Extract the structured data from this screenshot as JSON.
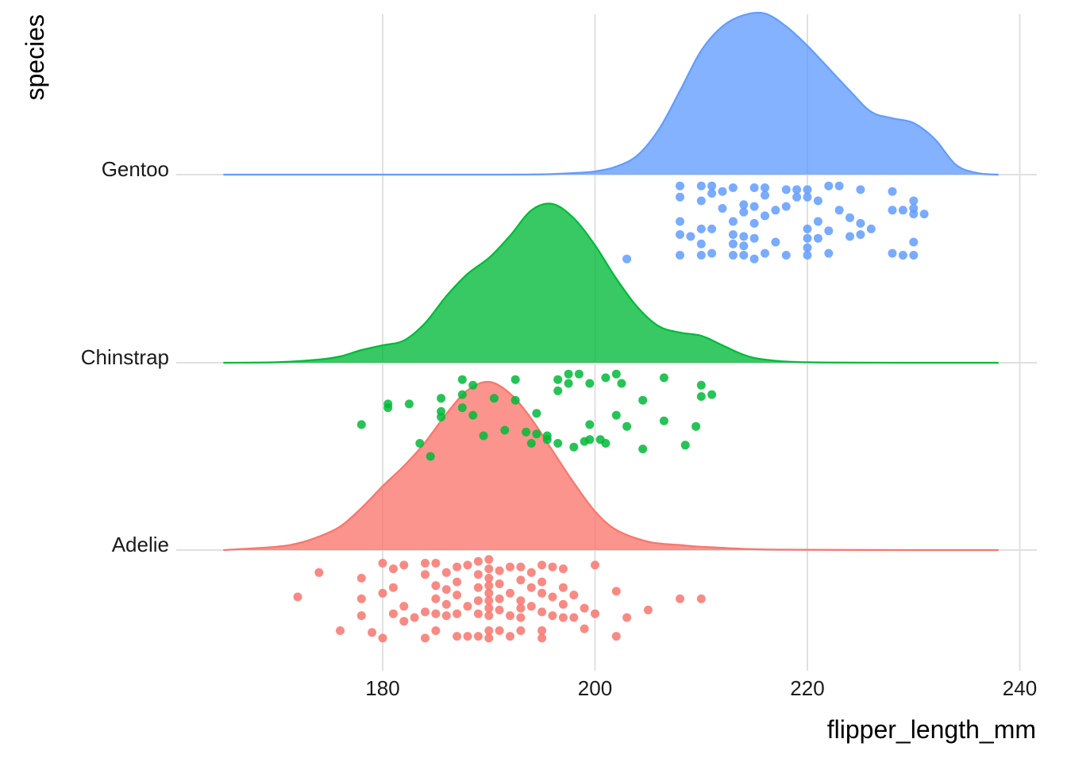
{
  "chart_data": {
    "type": "ridgeline",
    "title": "",
    "xlabel": "flipper_length_mm",
    "ylabel": "species",
    "xlim": [
      165,
      238
    ],
    "xticks": [
      180,
      200,
      220,
      240
    ],
    "grid": true,
    "legend": "none",
    "categories": [
      "Adelie",
      "Chinstrap",
      "Gentoo"
    ],
    "series": [
      {
        "name": "Adelie",
        "color": "#F8766D",
        "density_x": [
          165,
          170,
          172,
          174,
          176,
          178,
          180,
          182,
          184,
          186,
          188,
          190,
          192,
          194,
          196,
          198,
          200,
          202,
          205,
          208,
          210,
          215,
          220,
          230,
          238
        ],
        "density_rel": [
          0,
          0.02,
          0.04,
          0.08,
          0.14,
          0.25,
          0.38,
          0.5,
          0.64,
          0.81,
          0.95,
          1.0,
          0.93,
          0.78,
          0.59,
          0.4,
          0.23,
          0.12,
          0.05,
          0.03,
          0.02,
          0.005,
          0.002,
          0,
          0
        ],
        "points": [
          {
            "x": 172,
            "y": -0.25
          },
          {
            "x": 174,
            "y": -0.12
          },
          {
            "x": 176,
            "y": -0.43
          },
          {
            "x": 178,
            "y": -0.15
          },
          {
            "x": 178,
            "y": -0.26
          },
          {
            "x": 178,
            "y": -0.35
          },
          {
            "x": 179,
            "y": -0.44
          },
          {
            "x": 180,
            "y": -0.07
          },
          {
            "x": 180,
            "y": -0.23
          },
          {
            "x": 180,
            "y": -0.47
          },
          {
            "x": 181,
            "y": -0.1
          },
          {
            "x": 181,
            "y": -0.2
          },
          {
            "x": 181,
            "y": -0.34
          },
          {
            "x": 182,
            "y": -0.08
          },
          {
            "x": 182,
            "y": -0.3
          },
          {
            "x": 182,
            "y": -0.38
          },
          {
            "x": 183,
            "y": -0.36
          },
          {
            "x": 184,
            "y": -0.07
          },
          {
            "x": 184,
            "y": -0.13
          },
          {
            "x": 184,
            "y": -0.33
          },
          {
            "x": 184,
            "y": -0.47
          },
          {
            "x": 185,
            "y": -0.07
          },
          {
            "x": 185,
            "y": -0.19
          },
          {
            "x": 185,
            "y": -0.26
          },
          {
            "x": 185,
            "y": -0.34
          },
          {
            "x": 185,
            "y": -0.43
          },
          {
            "x": 186,
            "y": -0.12
          },
          {
            "x": 186,
            "y": -0.21
          },
          {
            "x": 186,
            "y": -0.29
          },
          {
            "x": 186,
            "y": -0.35
          },
          {
            "x": 187,
            "y": -0.09
          },
          {
            "x": 187,
            "y": -0.17
          },
          {
            "x": 187,
            "y": -0.24
          },
          {
            "x": 187,
            "y": -0.34
          },
          {
            "x": 187,
            "y": -0.46
          },
          {
            "x": 188,
            "y": -0.08
          },
          {
            "x": 188,
            "y": -0.3
          },
          {
            "x": 188,
            "y": -0.46
          },
          {
            "x": 189,
            "y": -0.06
          },
          {
            "x": 189,
            "y": -0.13
          },
          {
            "x": 189,
            "y": -0.2
          },
          {
            "x": 189,
            "y": -0.27
          },
          {
            "x": 189,
            "y": -0.34
          },
          {
            "x": 189,
            "y": -0.46
          },
          {
            "x": 190,
            "y": -0.05
          },
          {
            "x": 190,
            "y": -0.1
          },
          {
            "x": 190,
            "y": -0.15
          },
          {
            "x": 190,
            "y": -0.19
          },
          {
            "x": 190,
            "y": -0.23
          },
          {
            "x": 190,
            "y": -0.27
          },
          {
            "x": 190,
            "y": -0.31
          },
          {
            "x": 190,
            "y": -0.35
          },
          {
            "x": 190,
            "y": -0.43
          },
          {
            "x": 190,
            "y": -0.47
          },
          {
            "x": 191,
            "y": -0.11
          },
          {
            "x": 191,
            "y": -0.18
          },
          {
            "x": 191,
            "y": -0.26
          },
          {
            "x": 191,
            "y": -0.32
          },
          {
            "x": 191,
            "y": -0.43
          },
          {
            "x": 192,
            "y": -0.09
          },
          {
            "x": 192,
            "y": -0.23
          },
          {
            "x": 192,
            "y": -0.35
          },
          {
            "x": 192,
            "y": -0.46
          },
          {
            "x": 193,
            "y": -0.09
          },
          {
            "x": 193,
            "y": -0.16
          },
          {
            "x": 193,
            "y": -0.27
          },
          {
            "x": 193,
            "y": -0.31
          },
          {
            "x": 193,
            "y": -0.36
          },
          {
            "x": 193,
            "y": -0.43
          },
          {
            "x": 194,
            "y": -0.12
          },
          {
            "x": 194,
            "y": -0.2
          },
          {
            "x": 194,
            "y": -0.3
          },
          {
            "x": 195,
            "y": -0.08
          },
          {
            "x": 195,
            "y": -0.17
          },
          {
            "x": 195,
            "y": -0.23
          },
          {
            "x": 195,
            "y": -0.33
          },
          {
            "x": 195,
            "y": -0.43
          },
          {
            "x": 195,
            "y": -0.47
          },
          {
            "x": 196,
            "y": -0.09
          },
          {
            "x": 196,
            "y": -0.25
          },
          {
            "x": 196,
            "y": -0.35
          },
          {
            "x": 197,
            "y": -0.1
          },
          {
            "x": 197,
            "y": -0.2
          },
          {
            "x": 197,
            "y": -0.29
          },
          {
            "x": 197,
            "y": -0.36
          },
          {
            "x": 198,
            "y": -0.24
          },
          {
            "x": 198,
            "y": -0.36
          },
          {
            "x": 199,
            "y": -0.31
          },
          {
            "x": 199,
            "y": -0.42
          },
          {
            "x": 200,
            "y": -0.08
          },
          {
            "x": 200,
            "y": -0.34
          },
          {
            "x": 202,
            "y": -0.22
          },
          {
            "x": 202,
            "y": -0.46
          },
          {
            "x": 203,
            "y": -0.36
          },
          {
            "x": 205,
            "y": -0.32
          },
          {
            "x": 208,
            "y": -0.26
          },
          {
            "x": 210,
            "y": -0.26
          }
        ]
      },
      {
        "name": "Chinstrap",
        "color": "#00BA38",
        "density_x": [
          165,
          170,
          174,
          176,
          178,
          180,
          182,
          184,
          186,
          188,
          190,
          192,
          194,
          196,
          198,
          200,
          202,
          204,
          206,
          208,
          210,
          212,
          214,
          216,
          220,
          230,
          238
        ],
        "density_rel": [
          0,
          0.003,
          0.02,
          0.04,
          0.08,
          0.11,
          0.14,
          0.25,
          0.42,
          0.56,
          0.66,
          0.8,
          0.96,
          1.0,
          0.91,
          0.74,
          0.53,
          0.35,
          0.23,
          0.19,
          0.17,
          0.11,
          0.05,
          0.02,
          0.003,
          0,
          0
        ],
        "points": [
          {
            "x": 178,
            "y": -0.33
          },
          {
            "x": 180.5,
            "y": -0.22
          },
          {
            "x": 180.5,
            "y": -0.24
          },
          {
            "x": 182.5,
            "y": -0.22
          },
          {
            "x": 183.5,
            "y": -0.43
          },
          {
            "x": 184.5,
            "y": -0.5
          },
          {
            "x": 185.5,
            "y": -0.19
          },
          {
            "x": 185.5,
            "y": -0.26
          },
          {
            "x": 185.5,
            "y": -0.29
          },
          {
            "x": 187.5,
            "y": -0.09
          },
          {
            "x": 187.5,
            "y": -0.17
          },
          {
            "x": 187.5,
            "y": -0.24
          },
          {
            "x": 188.5,
            "y": -0.12
          },
          {
            "x": 188.5,
            "y": -0.28
          },
          {
            "x": 189.5,
            "y": -0.39
          },
          {
            "x": 190.5,
            "y": -0.19
          },
          {
            "x": 191.5,
            "y": -0.36
          },
          {
            "x": 192.5,
            "y": -0.09
          },
          {
            "x": 192.5,
            "y": -0.2
          },
          {
            "x": 193.5,
            "y": -0.37
          },
          {
            "x": 194,
            "y": -0.43
          },
          {
            "x": 194.5,
            "y": -0.27
          },
          {
            "x": 194.5,
            "y": -0.38
          },
          {
            "x": 195.5,
            "y": -0.39
          },
          {
            "x": 195.5,
            "y": -0.41
          },
          {
            "x": 196.5,
            "y": -0.09
          },
          {
            "x": 196.5,
            "y": -0.15
          },
          {
            "x": 196.5,
            "y": -0.43
          },
          {
            "x": 197.5,
            "y": -0.06
          },
          {
            "x": 197.5,
            "y": -0.11
          },
          {
            "x": 198,
            "y": -0.45
          },
          {
            "x": 198.5,
            "y": -0.06
          },
          {
            "x": 199,
            "y": -0.42
          },
          {
            "x": 199.5,
            "y": -0.11
          },
          {
            "x": 199.5,
            "y": -0.33
          },
          {
            "x": 199.5,
            "y": -0.41
          },
          {
            "x": 200.5,
            "y": -0.41
          },
          {
            "x": 201,
            "y": -0.08
          },
          {
            "x": 201,
            "y": -0.43
          },
          {
            "x": 202,
            "y": -0.06
          },
          {
            "x": 202,
            "y": -0.28
          },
          {
            "x": 202.5,
            "y": -0.11
          },
          {
            "x": 203,
            "y": -0.34
          },
          {
            "x": 204.5,
            "y": -0.2
          },
          {
            "x": 204.5,
            "y": -0.46
          },
          {
            "x": 206.5,
            "y": -0.08
          },
          {
            "x": 206.5,
            "y": -0.31
          },
          {
            "x": 208.5,
            "y": -0.44
          },
          {
            "x": 209.5,
            "y": -0.34
          },
          {
            "x": 210,
            "y": -0.12
          },
          {
            "x": 210,
            "y": -0.18
          },
          {
            "x": 211,
            "y": -0.17
          }
        ]
      },
      {
        "name": "Gentoo",
        "color": "#619CFF",
        "density_x": [
          165,
          190,
          195,
          198,
          200,
          202,
          204,
          206,
          208,
          210,
          212,
          214,
          216,
          218,
          220,
          222,
          224,
          226,
          228,
          230,
          232,
          234,
          236,
          238
        ],
        "density_rel": [
          0,
          0,
          0.002,
          0.01,
          0.02,
          0.05,
          0.12,
          0.28,
          0.52,
          0.77,
          0.92,
          0.99,
          1.0,
          0.92,
          0.8,
          0.66,
          0.52,
          0.39,
          0.35,
          0.32,
          0.22,
          0.06,
          0.01,
          0
        ],
        "points": [
          {
            "x": 203,
            "y": -0.45
          },
          {
            "x": 208,
            "y": -0.06
          },
          {
            "x": 208,
            "y": -0.12
          },
          {
            "x": 208,
            "y": -0.25
          },
          {
            "x": 208,
            "y": -0.32
          },
          {
            "x": 208,
            "y": -0.43
          },
          {
            "x": 209,
            "y": -0.33
          },
          {
            "x": 210,
            "y": -0.06
          },
          {
            "x": 210,
            "y": -0.14
          },
          {
            "x": 210,
            "y": -0.29
          },
          {
            "x": 210,
            "y": -0.37
          },
          {
            "x": 210,
            "y": -0.43
          },
          {
            "x": 211,
            "y": -0.06
          },
          {
            "x": 211,
            "y": -0.1
          },
          {
            "x": 211,
            "y": -0.29
          },
          {
            "x": 211,
            "y": -0.42
          },
          {
            "x": 212,
            "y": -0.09
          },
          {
            "x": 212,
            "y": -0.18
          },
          {
            "x": 213,
            "y": -0.07
          },
          {
            "x": 213,
            "y": -0.25
          },
          {
            "x": 213,
            "y": -0.32
          },
          {
            "x": 213,
            "y": -0.37
          },
          {
            "x": 213,
            "y": -0.43
          },
          {
            "x": 214,
            "y": -0.16
          },
          {
            "x": 214,
            "y": -0.2
          },
          {
            "x": 214,
            "y": -0.33
          },
          {
            "x": 214,
            "y": -0.38
          },
          {
            "x": 214,
            "y": -0.43
          },
          {
            "x": 215,
            "y": -0.07
          },
          {
            "x": 215,
            "y": -0.17
          },
          {
            "x": 215,
            "y": -0.26
          },
          {
            "x": 215,
            "y": -0.34
          },
          {
            "x": 215,
            "y": -0.45
          },
          {
            "x": 216,
            "y": -0.07
          },
          {
            "x": 216,
            "y": -0.11
          },
          {
            "x": 216,
            "y": -0.22
          },
          {
            "x": 216,
            "y": -0.42
          },
          {
            "x": 217,
            "y": -0.19
          },
          {
            "x": 217,
            "y": -0.36
          },
          {
            "x": 218,
            "y": -0.08
          },
          {
            "x": 218,
            "y": -0.17
          },
          {
            "x": 218,
            "y": -0.43
          },
          {
            "x": 219,
            "y": -0.08
          },
          {
            "x": 219,
            "y": -0.12
          },
          {
            "x": 220,
            "y": -0.08
          },
          {
            "x": 220,
            "y": -0.12
          },
          {
            "x": 220,
            "y": -0.29
          },
          {
            "x": 220,
            "y": -0.34
          },
          {
            "x": 220,
            "y": -0.39
          },
          {
            "x": 220,
            "y": -0.43
          },
          {
            "x": 221,
            "y": -0.14
          },
          {
            "x": 221,
            "y": -0.25
          },
          {
            "x": 221,
            "y": -0.34
          },
          {
            "x": 222,
            "y": -0.06
          },
          {
            "x": 222,
            "y": -0.3
          },
          {
            "x": 222,
            "y": -0.42
          },
          {
            "x": 223,
            "y": -0.06
          },
          {
            "x": 223,
            "y": -0.19
          },
          {
            "x": 224,
            "y": -0.23
          },
          {
            "x": 224,
            "y": -0.33
          },
          {
            "x": 225,
            "y": -0.08
          },
          {
            "x": 225,
            "y": -0.26
          },
          {
            "x": 225,
            "y": -0.32
          },
          {
            "x": 226,
            "y": -0.29
          },
          {
            "x": 228,
            "y": -0.09
          },
          {
            "x": 228,
            "y": -0.19
          },
          {
            "x": 228,
            "y": -0.42
          },
          {
            "x": 229,
            "y": -0.19
          },
          {
            "x": 229,
            "y": -0.43
          },
          {
            "x": 230,
            "y": -0.14
          },
          {
            "x": 230,
            "y": -0.18
          },
          {
            "x": 230,
            "y": -0.21
          },
          {
            "x": 230,
            "y": -0.36
          },
          {
            "x": 230,
            "y": -0.43
          },
          {
            "x": 231,
            "y": -0.21
          }
        ]
      }
    ]
  }
}
